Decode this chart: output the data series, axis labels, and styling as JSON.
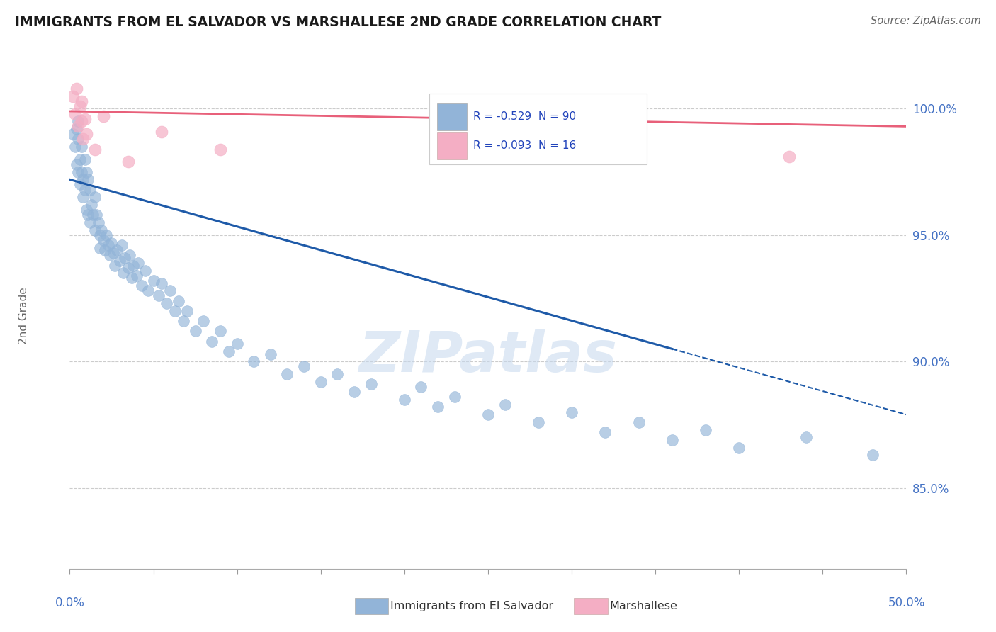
{
  "title": "IMMIGRANTS FROM EL SALVADOR VS MARSHALLESE 2ND GRADE CORRELATION CHART",
  "source": "Source: ZipAtlas.com",
  "ylabel": "2nd Grade",
  "y_axis_labels": [
    "100.0%",
    "95.0%",
    "90.0%",
    "85.0%"
  ],
  "y_axis_values": [
    1.0,
    0.95,
    0.9,
    0.85
  ],
  "x_range": [
    0.0,
    0.5
  ],
  "y_range": [
    0.818,
    1.018
  ],
  "legend_blue_r": "-0.529",
  "legend_blue_n": "90",
  "legend_pink_r": "-0.093",
  "legend_pink_n": "16",
  "blue_color": "#92b4d8",
  "pink_color": "#f4aec4",
  "trend_blue_color": "#1e5aa8",
  "trend_pink_color": "#e8607a",
  "watermark": "ZIPatlas",
  "blue_scatter_x": [
    0.002,
    0.003,
    0.004,
    0.004,
    0.005,
    0.005,
    0.005,
    0.006,
    0.006,
    0.007,
    0.007,
    0.008,
    0.008,
    0.009,
    0.009,
    0.01,
    0.01,
    0.011,
    0.011,
    0.012,
    0.012,
    0.013,
    0.014,
    0.015,
    0.015,
    0.016,
    0.017,
    0.018,
    0.018,
    0.019,
    0.02,
    0.021,
    0.022,
    0.023,
    0.024,
    0.025,
    0.026,
    0.027,
    0.028,
    0.03,
    0.031,
    0.032,
    0.033,
    0.035,
    0.036,
    0.037,
    0.038,
    0.04,
    0.041,
    0.043,
    0.045,
    0.047,
    0.05,
    0.053,
    0.055,
    0.058,
    0.06,
    0.063,
    0.065,
    0.068,
    0.07,
    0.075,
    0.08,
    0.085,
    0.09,
    0.095,
    0.1,
    0.11,
    0.12,
    0.13,
    0.14,
    0.15,
    0.16,
    0.17,
    0.18,
    0.2,
    0.21,
    0.22,
    0.23,
    0.25,
    0.26,
    0.28,
    0.3,
    0.32,
    0.34,
    0.36,
    0.38,
    0.4,
    0.44,
    0.48
  ],
  "blue_scatter_y": [
    0.99,
    0.985,
    0.992,
    0.978,
    0.988,
    0.975,
    0.995,
    0.98,
    0.97,
    0.985,
    0.975,
    0.972,
    0.965,
    0.98,
    0.968,
    0.975,
    0.96,
    0.972,
    0.958,
    0.968,
    0.955,
    0.962,
    0.958,
    0.965,
    0.952,
    0.958,
    0.955,
    0.95,
    0.945,
    0.952,
    0.948,
    0.944,
    0.95,
    0.946,
    0.942,
    0.947,
    0.943,
    0.938,
    0.944,
    0.94,
    0.946,
    0.935,
    0.941,
    0.937,
    0.942,
    0.933,
    0.938,
    0.934,
    0.939,
    0.93,
    0.936,
    0.928,
    0.932,
    0.926,
    0.931,
    0.923,
    0.928,
    0.92,
    0.924,
    0.916,
    0.92,
    0.912,
    0.916,
    0.908,
    0.912,
    0.904,
    0.907,
    0.9,
    0.903,
    0.895,
    0.898,
    0.892,
    0.895,
    0.888,
    0.891,
    0.885,
    0.89,
    0.882,
    0.886,
    0.879,
    0.883,
    0.876,
    0.88,
    0.872,
    0.876,
    0.869,
    0.873,
    0.866,
    0.87,
    0.863
  ],
  "pink_scatter_x": [
    0.002,
    0.003,
    0.004,
    0.005,
    0.006,
    0.007,
    0.007,
    0.008,
    0.009,
    0.01,
    0.015,
    0.02,
    0.035,
    0.055,
    0.09,
    0.43
  ],
  "pink_scatter_y": [
    1.005,
    0.998,
    1.008,
    0.993,
    1.001,
    0.995,
    1.003,
    0.988,
    0.996,
    0.99,
    0.984,
    0.997,
    0.979,
    0.991,
    0.984,
    0.981
  ],
  "blue_trend_x0": 0.0,
  "blue_trend_y0": 0.972,
  "blue_trend_x1": 0.36,
  "blue_trend_y1": 0.905,
  "blue_trend_dash_x0": 0.36,
  "blue_trend_dash_y0": 0.905,
  "blue_trend_dash_x1": 0.5,
  "blue_trend_dash_y1": 0.879,
  "pink_trend_x0": 0.0,
  "pink_trend_y0": 0.999,
  "pink_trend_x1": 0.5,
  "pink_trend_y1": 0.993
}
